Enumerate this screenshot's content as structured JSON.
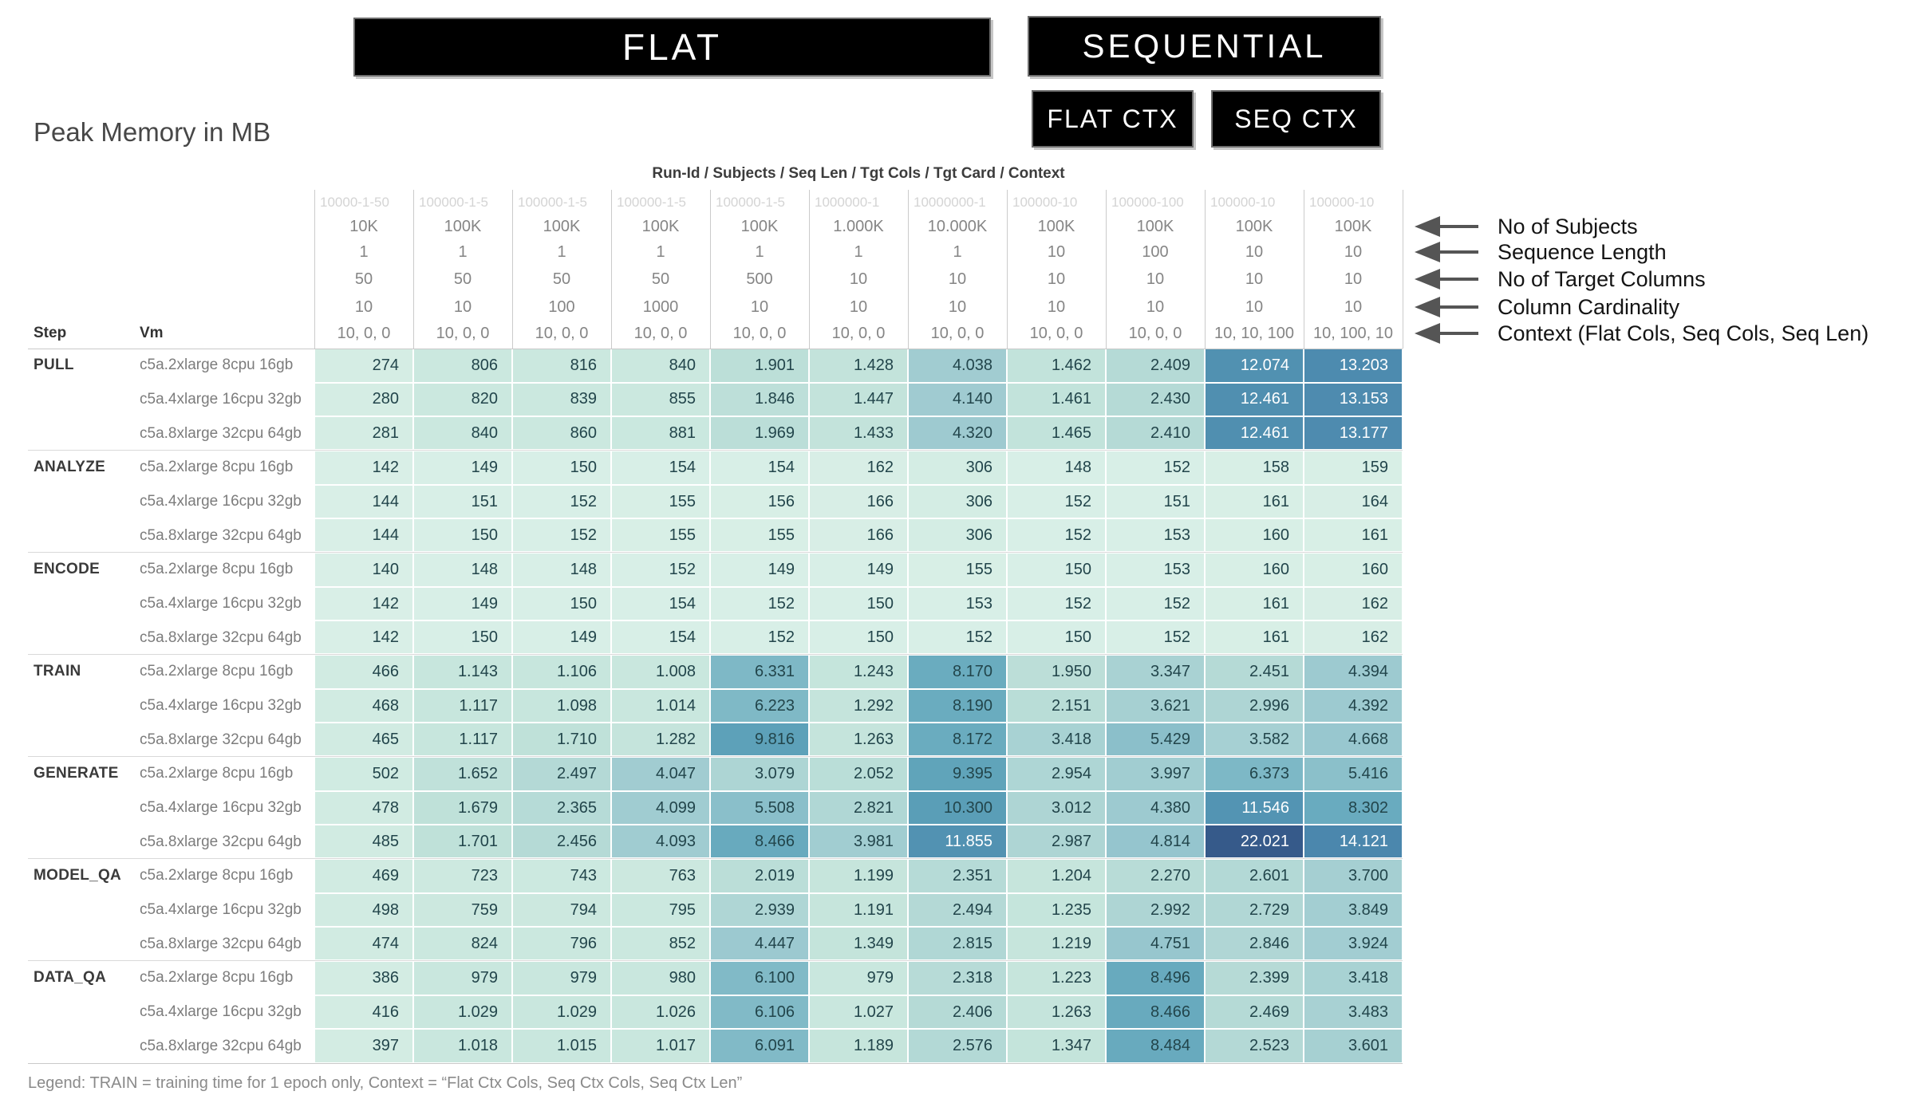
{
  "banners": {
    "flat": "FLAT",
    "sequential": "SEQUENTIAL",
    "flat_ctx": "FLAT CTX",
    "seq_ctx": "SEQ CTX"
  },
  "title": "Peak Memory in MB",
  "header": {
    "axis_title": "Run-Id / Subjects / Seq Len / Tgt Cols / Tgt Card / Context",
    "step_label": "Step",
    "vm_label": "Vm",
    "run_ids": [
      "10000-1-50",
      "100000-1-5",
      "100000-1-5",
      "100000-1-5",
      "100000-1-5",
      "1000000-1",
      "10000000-1",
      "100000-10",
      "100000-100",
      "100000-10",
      "100000-10"
    ],
    "attribute_rows": [
      {
        "name": "subjects",
        "values": [
          "10K",
          "100K",
          "100K",
          "100K",
          "100K",
          "1.000K",
          "10.000K",
          "100K",
          "100K",
          "100K",
          "100K"
        ]
      },
      {
        "name": "seq_len",
        "values": [
          "1",
          "1",
          "1",
          "1",
          "1",
          "1",
          "1",
          "10",
          "100",
          "10",
          "10"
        ]
      },
      {
        "name": "tgt_cols",
        "values": [
          "50",
          "50",
          "50",
          "50",
          "500",
          "10",
          "10",
          "10",
          "10",
          "10",
          "10"
        ]
      },
      {
        "name": "tgt_card",
        "values": [
          "10",
          "10",
          "100",
          "1000",
          "10",
          "10",
          "10",
          "10",
          "10",
          "10",
          "10"
        ]
      },
      {
        "name": "context",
        "values": [
          "10, 0, 0",
          "10, 0, 0",
          "10, 0, 0",
          "10, 0, 0",
          "10, 0, 0",
          "10, 0, 0",
          "10, 0, 0",
          "10, 0, 0",
          "10, 0, 0",
          "10, 10, 100",
          "10, 100, 10"
        ]
      }
    ]
  },
  "annotations": {
    "labels": [
      "No of Subjects",
      "Sequence Length",
      "No of Target Columns",
      "Column Cardinality",
      "Context (Flat Cols, Seq Cols, Seq Len)"
    ]
  },
  "legend": {
    "text": "Legend: TRAIN = training time for 1 epoch only, Context = “Flat Ctx Cols, Seq Ctx Cols, Seq Ctx Len”"
  },
  "chart_data": {
    "type": "heatmap",
    "title": "Peak Memory in MB",
    "unit": "MB",
    "value_format": "thousands separated with dots",
    "columns": {
      "run_id": [
        "10000-1-50",
        "100000-1-5",
        "100000-1-5",
        "100000-1-5",
        "100000-1-5",
        "1000000-1",
        "10000000-1",
        "100000-10",
        "100000-100",
        "100000-10",
        "100000-10"
      ],
      "subjects": [
        "10K",
        "100K",
        "100K",
        "100K",
        "100K",
        "1.000K",
        "10.000K",
        "100K",
        "100K",
        "100K",
        "100K"
      ],
      "seq_len": [
        1,
        1,
        1,
        1,
        1,
        1,
        1,
        10,
        100,
        10,
        10
      ],
      "tgt_cols": [
        50,
        50,
        50,
        50,
        500,
        10,
        10,
        10,
        10,
        10,
        10
      ],
      "tgt_card": [
        10,
        10,
        100,
        1000,
        10,
        10,
        10,
        10,
        10,
        10,
        10
      ],
      "context": [
        "10, 0, 0",
        "10, 0, 0",
        "10, 0, 0",
        "10, 0, 0",
        "10, 0, 0",
        "10, 0, 0",
        "10, 0, 0",
        "10, 0, 0",
        "10, 0, 0",
        "10, 10, 100",
        "10, 100, 10"
      ]
    },
    "group_banners": {
      "flat_columns": [
        1,
        7
      ],
      "sequential_columns": [
        8,
        11
      ],
      "flat_ctx_columns": [
        8,
        9
      ],
      "seq_ctx_columns": [
        10,
        11
      ]
    },
    "steps": [
      {
        "name": "PULL",
        "rows": [
          {
            "vm": "c5a.2xlarge 8cpu 16gb",
            "values": [
              274,
              806,
              816,
              840,
              1901,
              1428,
              4038,
              1462,
              2409,
              12074,
              13203
            ]
          },
          {
            "vm": "c5a.4xlarge 16cpu 32gb",
            "values": [
              280,
              820,
              839,
              855,
              1846,
              1447,
              4140,
              1461,
              2430,
              12461,
              13153
            ]
          },
          {
            "vm": "c5a.8xlarge 32cpu 64gb",
            "values": [
              281,
              840,
              860,
              881,
              1969,
              1433,
              4320,
              1465,
              2410,
              12461,
              13177
            ]
          }
        ]
      },
      {
        "name": "ANALYZE",
        "rows": [
          {
            "vm": "c5a.2xlarge 8cpu 16gb",
            "values": [
              142,
              149,
              150,
              154,
              154,
              162,
              306,
              148,
              152,
              158,
              159
            ]
          },
          {
            "vm": "c5a.4xlarge 16cpu 32gb",
            "values": [
              144,
              151,
              152,
              155,
              156,
              166,
              306,
              152,
              151,
              161,
              164
            ]
          },
          {
            "vm": "c5a.8xlarge 32cpu 64gb",
            "values": [
              144,
              150,
              152,
              155,
              155,
              166,
              306,
              152,
              153,
              160,
              161
            ]
          }
        ]
      },
      {
        "name": "ENCODE",
        "rows": [
          {
            "vm": "c5a.2xlarge 8cpu 16gb",
            "values": [
              140,
              148,
              148,
              152,
              149,
              149,
              155,
              150,
              153,
              160,
              160
            ]
          },
          {
            "vm": "c5a.4xlarge 16cpu 32gb",
            "values": [
              142,
              149,
              150,
              154,
              152,
              150,
              153,
              152,
              152,
              161,
              162
            ]
          },
          {
            "vm": "c5a.8xlarge 32cpu 64gb",
            "values": [
              142,
              150,
              149,
              154,
              152,
              150,
              152,
              150,
              152,
              161,
              162
            ]
          }
        ]
      },
      {
        "name": "TRAIN",
        "rows": [
          {
            "vm": "c5a.2xlarge 8cpu 16gb",
            "values": [
              466,
              1143,
              1106,
              1008,
              6331,
              1243,
              8170,
              1950,
              3347,
              2451,
              4394
            ]
          },
          {
            "vm": "c5a.4xlarge 16cpu 32gb",
            "values": [
              468,
              1117,
              1098,
              1014,
              6223,
              1292,
              8190,
              2151,
              3621,
              2996,
              4392
            ]
          },
          {
            "vm": "c5a.8xlarge 32cpu 64gb",
            "values": [
              465,
              1117,
              1710,
              1282,
              9816,
              1263,
              8172,
              3418,
              5429,
              3582,
              4668
            ]
          }
        ]
      },
      {
        "name": "GENERATE",
        "rows": [
          {
            "vm": "c5a.2xlarge 8cpu 16gb",
            "values": [
              502,
              1652,
              2497,
              4047,
              3079,
              2052,
              9395,
              2954,
              3997,
              6373,
              5416
            ]
          },
          {
            "vm": "c5a.4xlarge 16cpu 32gb",
            "values": [
              478,
              1679,
              2365,
              4099,
              5508,
              2821,
              10300,
              3012,
              4380,
              11546,
              8302
            ]
          },
          {
            "vm": "c5a.8xlarge 32cpu 64gb",
            "values": [
              485,
              1701,
              2456,
              4093,
              8466,
              3981,
              11855,
              2987,
              4814,
              22021,
              14121
            ]
          }
        ]
      },
      {
        "name": "MODEL_QA",
        "rows": [
          {
            "vm": "c5a.2xlarge 8cpu 16gb",
            "values": [
              469,
              723,
              743,
              763,
              2019,
              1199,
              2351,
              1204,
              2270,
              2601,
              3700
            ]
          },
          {
            "vm": "c5a.4xlarge 16cpu 32gb",
            "values": [
              498,
              759,
              794,
              795,
              2939,
              1191,
              2494,
              1235,
              2992,
              2729,
              3849
            ]
          },
          {
            "vm": "c5a.8xlarge 32cpu 64gb",
            "values": [
              474,
              824,
              796,
              852,
              4447,
              1349,
              2815,
              1219,
              4751,
              2846,
              3924
            ]
          }
        ]
      },
      {
        "name": "DATA_QA",
        "rows": [
          {
            "vm": "c5a.2xlarge 8cpu 16gb",
            "values": [
              386,
              979,
              979,
              980,
              6100,
              979,
              2318,
              1223,
              8496,
              2399,
              3418
            ]
          },
          {
            "vm": "c5a.4xlarge 16cpu 32gb",
            "values": [
              416,
              1029,
              1029,
              1026,
              6106,
              1027,
              2406,
              1263,
              8466,
              2469,
              3483
            ]
          },
          {
            "vm": "c5a.8xlarge 32cpu 64gb",
            "values": [
              397,
              1018,
              1015,
              1017,
              6091,
              1189,
              2576,
              1347,
              8484,
              2523,
              3601
            ]
          }
        ]
      }
    ],
    "color_scale": {
      "type": "log",
      "min": 140,
      "max": 22021,
      "low": "#d9efe7",
      "mid": "#7db8c6",
      "high": "#36588a"
    }
  }
}
